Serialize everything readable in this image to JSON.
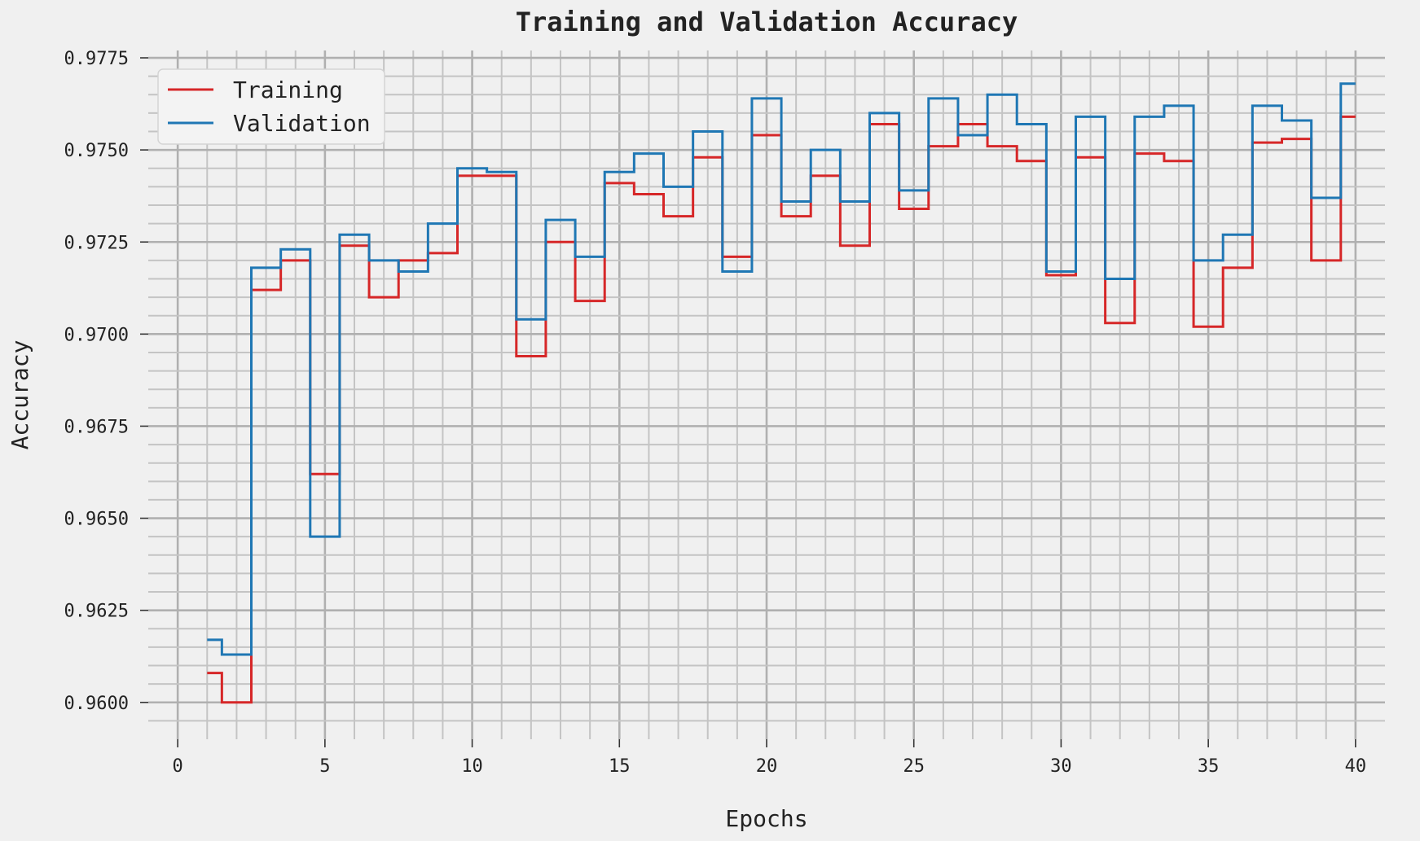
{
  "chart_data": {
    "type": "line",
    "drawstyle": "steps-mid",
    "title": "Training and Validation Accuracy",
    "xlabel": "Epochs",
    "ylabel": "Accuracy",
    "xlim": [
      -1,
      41
    ],
    "ylim": [
      0.959,
      0.9777
    ],
    "xticks": [
      0,
      5,
      10,
      15,
      20,
      25,
      30,
      35,
      40
    ],
    "xtick_labels": [
      "0",
      "5",
      "10",
      "15",
      "20",
      "25",
      "30",
      "35",
      "40"
    ],
    "yticks": [
      0.96,
      0.9625,
      0.965,
      0.9675,
      0.97,
      0.9725,
      0.975,
      0.9775
    ],
    "ytick_labels": [
      "0.9600",
      "0.9625",
      "0.9650",
      "0.9675",
      "0.9700",
      "0.9725",
      "0.9750",
      "0.9775"
    ],
    "grid": true,
    "legend_position": "top-left",
    "x": [
      1,
      2,
      3,
      4,
      5,
      6,
      7,
      8,
      9,
      10,
      11,
      12,
      13,
      14,
      15,
      16,
      17,
      18,
      19,
      20,
      21,
      22,
      23,
      24,
      25,
      26,
      27,
      28,
      29,
      30,
      31,
      32,
      33,
      34,
      35,
      36,
      37,
      38,
      39,
      40
    ],
    "series": [
      {
        "name": "Training",
        "color": "#d62728",
        "values": [
          0.9608,
          0.96,
          0.9712,
          0.972,
          0.9662,
          0.9724,
          0.971,
          0.972,
          0.9722,
          0.9743,
          0.9743,
          0.9694,
          0.9725,
          0.9709,
          0.9741,
          0.9738,
          0.9732,
          0.9748,
          0.9721,
          0.9754,
          0.9732,
          0.9743,
          0.9724,
          0.9757,
          0.9734,
          0.9751,
          0.9757,
          0.9751,
          0.9747,
          0.9716,
          0.9748,
          0.9703,
          0.9749,
          0.9747,
          0.9702,
          0.9718,
          0.9752,
          0.9753,
          0.972,
          0.9759
        ]
      },
      {
        "name": "Validation",
        "color": "#1f77b4",
        "values": [
          0.9617,
          0.9613,
          0.9718,
          0.9723,
          0.9645,
          0.9727,
          0.972,
          0.9717,
          0.973,
          0.9745,
          0.9744,
          0.9704,
          0.9731,
          0.9721,
          0.9744,
          0.9749,
          0.974,
          0.9755,
          0.9717,
          0.9764,
          0.9736,
          0.975,
          0.9736,
          0.976,
          0.9739,
          0.9764,
          0.9754,
          0.9765,
          0.9757,
          0.9717,
          0.9759,
          0.9715,
          0.9759,
          0.9762,
          0.972,
          0.9727,
          0.9762,
          0.9758,
          0.9737,
          0.9768
        ]
      }
    ]
  }
}
